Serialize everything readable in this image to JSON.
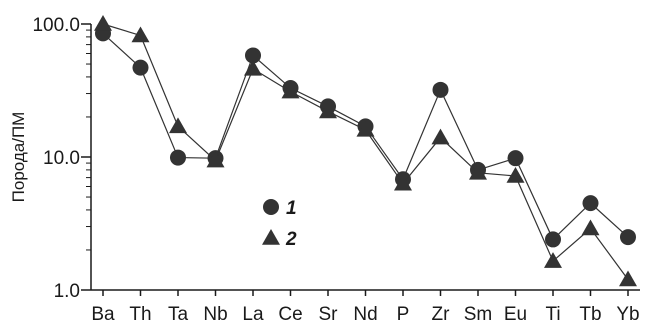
{
  "chart_data": {
    "type": "line",
    "y_scale": "log",
    "ylim": [
      1,
      100
    ],
    "yticks": [
      "1.0",
      "10.0",
      "100.0"
    ],
    "ylabel": "Порода/ПМ",
    "xlabel": "",
    "grid": false,
    "legend_position": "center",
    "categories": [
      "Ba",
      "Th",
      "Ta",
      "Nb",
      "La",
      "Ce",
      "Sr",
      "Nd",
      "P",
      "Zr",
      "Sm",
      "Eu",
      "Ti",
      "Tb",
      "Yb"
    ],
    "series": [
      {
        "name": "1",
        "marker": "circle",
        "values": [
          85,
          47,
          9.9,
          9.8,
          58,
          33,
          24,
          17,
          6.8,
          32,
          8.0,
          9.8,
          2.4,
          4.5,
          2.5
        ]
      },
      {
        "name": "2",
        "marker": "triangle",
        "values": [
          100,
          82,
          17,
          9.4,
          46,
          31,
          22,
          16,
          6.3,
          14,
          7.6,
          7.2,
          1.65,
          2.9,
          1.2
        ]
      }
    ],
    "colors": {
      "marker": "#333333",
      "line": "#333333",
      "axis": "#1a1a1a"
    }
  }
}
